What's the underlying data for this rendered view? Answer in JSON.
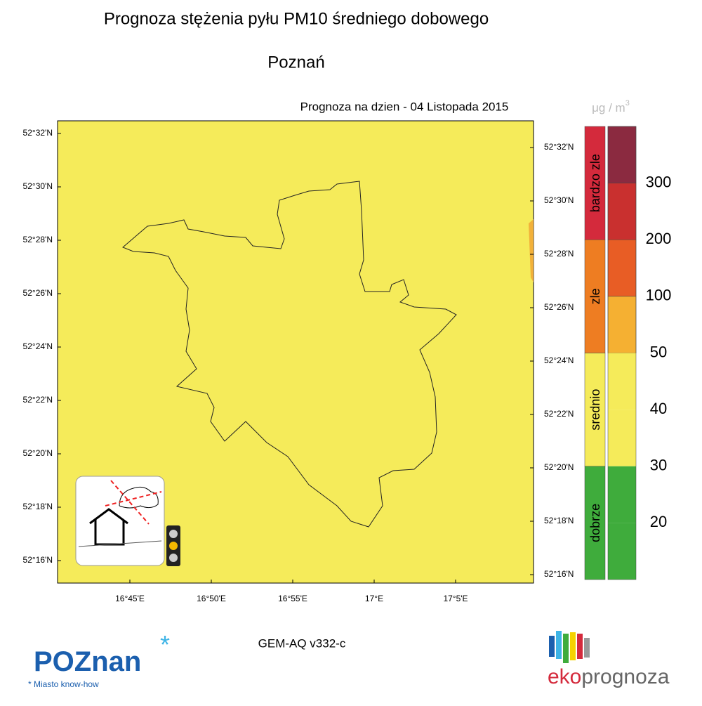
{
  "title": "Prognoza stężenia pyłu PM10 średniego dobowego",
  "subtitle": "Poznań",
  "date_label": "Prognoza na dzien -  04 Listopada 2015",
  "unit": {
    "base": "μg / m",
    "exponent": "3"
  },
  "map": {
    "left_lat_labels": [
      "52°32'N",
      "52°30'N",
      "52°28'N",
      "52°26'N",
      "52°24'N",
      "52°22'N",
      "52°20'N",
      "52°18'N",
      "52°16'N"
    ],
    "right_lat_labels": [
      "52°32'N",
      "52°30'N",
      "52°28'N",
      "52°26'N",
      "52°24'N",
      "52°22'N",
      "52°20'N",
      "52°18'N",
      "52°16'N"
    ],
    "lon_labels": [
      "16°45'E",
      "16°50'E",
      "16°55'E",
      "17°E",
      "17°5'E"
    ]
  },
  "legend": {
    "categories": [
      {
        "label": "bardzo zle",
        "color": "#d42a3c"
      },
      {
        "label": "zle",
        "color": "#ee7d22"
      },
      {
        "label": "srednio",
        "color": "#f5eb5a"
      },
      {
        "label": "dobrze",
        "color": "#3fac3c"
      }
    ],
    "band_colors": [
      "#8b2a40",
      "#c9302f",
      "#e85d25",
      "#f5b032",
      "#f5eb5a",
      "#f5eb5a",
      "#3fac3c",
      "#3fac3c"
    ],
    "thresholds": [
      300,
      200,
      100,
      50,
      40,
      30,
      20
    ]
  },
  "model": "GEM-AQ v332-c",
  "logos": {
    "city": "POZnan",
    "city_tagline": "Miasto know-how",
    "brand_prefix": "eko",
    "brand_suffix": "prognoza"
  }
}
